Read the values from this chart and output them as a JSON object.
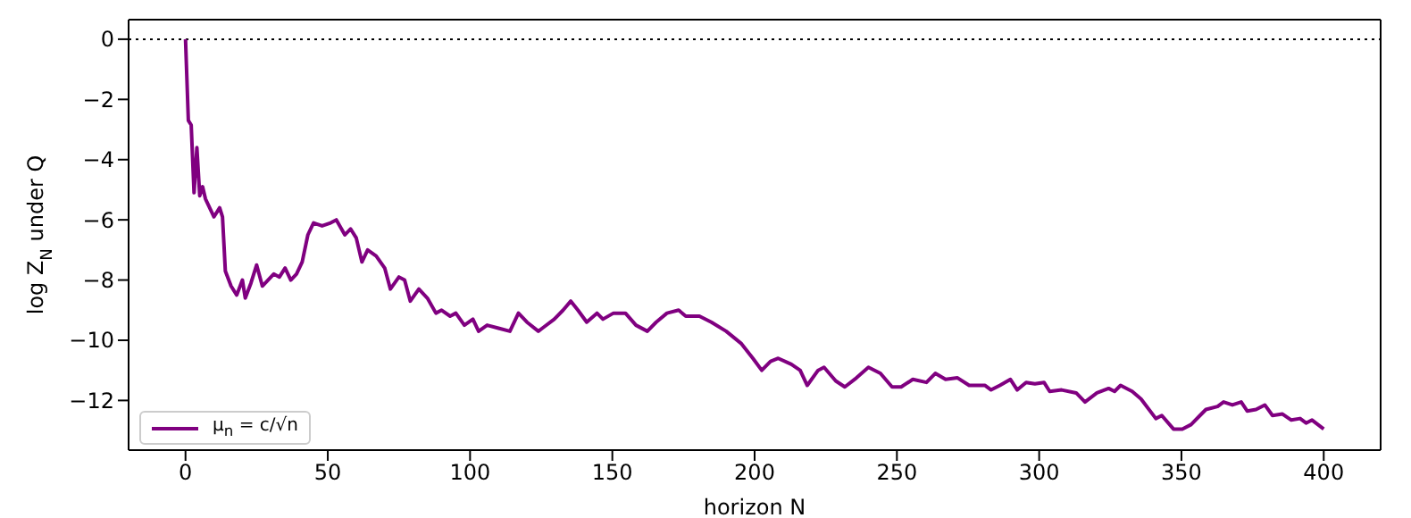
{
  "chart_data": {
    "type": "line",
    "xlabel": "horizon N",
    "ylabel": "log Z$_{N}$ under Q",
    "x": [
      0,
      1,
      2,
      3,
      4,
      5,
      6,
      7,
      8,
      10,
      12,
      13,
      14,
      16,
      18,
      20,
      21,
      23,
      25,
      27,
      29,
      31,
      33,
      35,
      37,
      39,
      41,
      43,
      45,
      48,
      51,
      53,
      56,
      58,
      60,
      62,
      64,
      67,
      70,
      72,
      75,
      77,
      79,
      82,
      85,
      88,
      90,
      93,
      95,
      98,
      101,
      103,
      106,
      110,
      114,
      117,
      120,
      124,
      125.4,
      129.6,
      132.7,
      135.4,
      137.9,
      141,
      144.6,
      146.7,
      150.4,
      154.6,
      158.3,
      162.3,
      165.4,
      169.2,
      173.3,
      175.8,
      180.6,
      184.8,
      190,
      195.2,
      199.4,
      202.5,
      205.6,
      208.3,
      212.9,
      216,
      218.5,
      222.3,
      224.4,
      228.5,
      231.7,
      235.8,
      240,
      244.2,
      248.3,
      251.5,
      255.6,
      260.4,
      263.5,
      267.1,
      271.3,
      275.4,
      281,
      283.1,
      286.2,
      289.9,
      292.3,
      295.4,
      298.5,
      301.7,
      303.7,
      307.9,
      313,
      316.1,
      320.3,
      324.4,
      326.5,
      328.6,
      332.7,
      335.8,
      341,
      343.1,
      347.2,
      350.3,
      353.4,
      356.5,
      358.6,
      362.7,
      364.8,
      367.9,
      371,
      373.1,
      376.2,
      379.3,
      382,
      385.5,
      388.6,
      391.7,
      393.8,
      395.9,
      400
    ],
    "series": [
      {
        "name": "μ$_{n}$ = c/√n",
        "color": "#800080",
        "values": [
          0,
          -2.7,
          -2.85,
          -5.1,
          -3.6,
          -5.2,
          -4.9,
          -5.3,
          -5.5,
          -5.9,
          -5.6,
          -5.9,
          -7.7,
          -8.2,
          -8.5,
          -8.0,
          -8.6,
          -8.1,
          -7.5,
          -8.2,
          -8.0,
          -7.8,
          -7.9,
          -7.6,
          -8.0,
          -7.8,
          -7.4,
          -6.5,
          -6.1,
          -6.2,
          -6.1,
          -6.0,
          -6.5,
          -6.3,
          -6.6,
          -7.4,
          -7.0,
          -7.2,
          -7.6,
          -8.3,
          -7.9,
          -8.0,
          -8.7,
          -8.3,
          -8.6,
          -9.1,
          -9.0,
          -9.2,
          -9.1,
          -9.5,
          -9.3,
          -9.7,
          -9.5,
          -9.6,
          -9.7,
          -9.1,
          -9.4,
          -9.7,
          -9.6,
          -9.3,
          -9.0,
          -8.7,
          -9.0,
          -9.4,
          -9.1,
          -9.3,
          -9.1,
          -9.1,
          -9.5,
          -9.7,
          -9.4,
          -9.1,
          -9.0,
          -9.2,
          -9.2,
          -9.4,
          -9.7,
          -10.1,
          -10.6,
          -11.0,
          -10.7,
          -10.6,
          -10.8,
          -11.0,
          -11.5,
          -11.0,
          -10.9,
          -11.35,
          -11.55,
          -11.25,
          -10.9,
          -11.1,
          -11.55,
          -11.55,
          -11.3,
          -11.4,
          -11.1,
          -11.3,
          -11.25,
          -11.5,
          -11.5,
          -11.65,
          -11.5,
          -11.3,
          -11.65,
          -11.4,
          -11.45,
          -11.4,
          -11.7,
          -11.65,
          -11.75,
          -12.05,
          -11.75,
          -11.6,
          -11.7,
          -11.5,
          -11.7,
          -11.95,
          -12.6,
          -12.5,
          -12.95,
          -12.95,
          -12.8,
          -12.5,
          -12.3,
          -12.2,
          -12.05,
          -12.15,
          -12.05,
          -12.35,
          -12.3,
          -12.15,
          -12.5,
          -12.45,
          -12.65,
          -12.6,
          -12.75,
          -12.65,
          -12.95
        ]
      }
    ],
    "xlim": [
      -20,
      420
    ],
    "xticks": [
      0,
      50,
      100,
      150,
      200,
      250,
      300,
      350,
      400
    ],
    "ylim": [
      -13.65,
      0.65
    ],
    "yticks": [
      0,
      -2,
      -4,
      -6,
      -8,
      -10,
      -12
    ],
    "ref_lines": [
      {
        "axis": "y",
        "value": 0,
        "color": "#000000",
        "line_style": "dotted"
      }
    ],
    "grid": false,
    "legend": "bottom left",
    "marker": "none",
    "line_style": "solid"
  }
}
